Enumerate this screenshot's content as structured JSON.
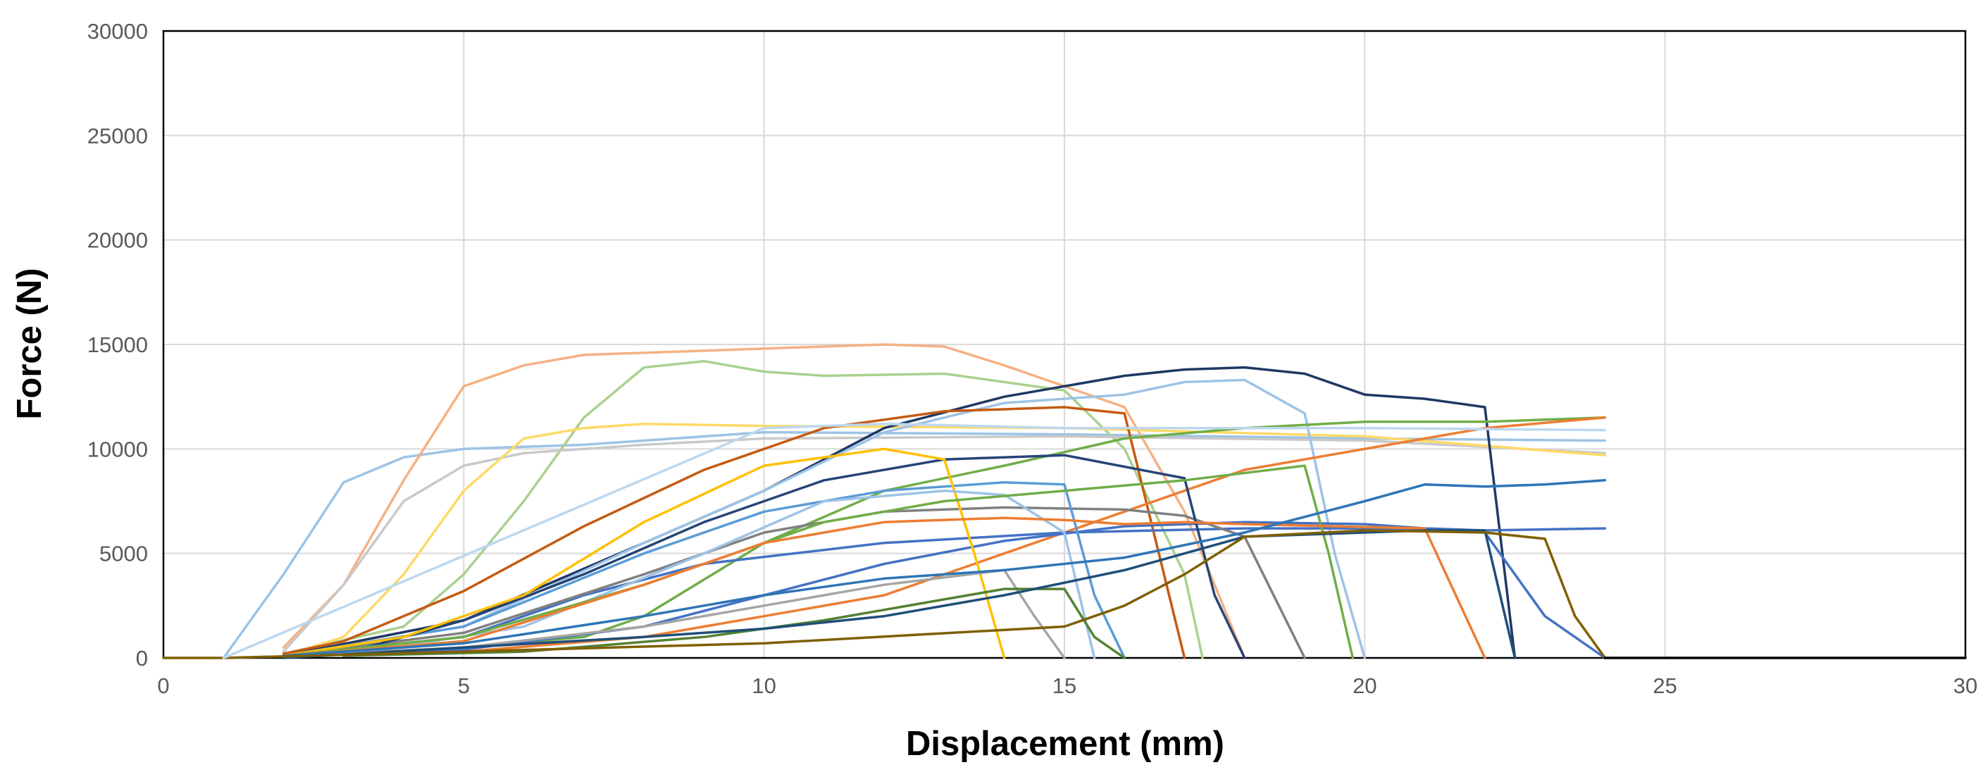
{
  "chart_data": {
    "type": "line",
    "title": "",
    "xlabel": "Displacement (mm)",
    "ylabel": "Force (N)",
    "xlim": [
      0,
      30
    ],
    "ylim": [
      0,
      30000
    ],
    "x_ticks": [
      "0",
      "5",
      "10",
      "15",
      "20",
      "25",
      "30"
    ],
    "y_ticks": [
      "0",
      "5000",
      "10000",
      "15000",
      "20000",
      "25000",
      "30000"
    ],
    "grid": true,
    "legend": "none",
    "series": [
      {
        "color": "#9dc3e6",
        "points": [
          [
            1,
            0
          ],
          [
            2,
            4000
          ],
          [
            3,
            8400
          ],
          [
            4,
            9600
          ],
          [
            5,
            10000
          ],
          [
            7,
            10200
          ],
          [
            10,
            10800
          ],
          [
            15,
            10700
          ],
          [
            20,
            10500
          ],
          [
            24,
            10400
          ]
        ]
      },
      {
        "color": "#f4b183",
        "points": [
          [
            2,
            500
          ],
          [
            3,
            3500
          ],
          [
            4,
            8500
          ],
          [
            5,
            13000
          ],
          [
            6,
            14000
          ],
          [
            7,
            14500
          ],
          [
            10,
            14800
          ],
          [
            12,
            15000
          ],
          [
            13,
            14900
          ],
          [
            14,
            14000
          ],
          [
            15,
            13000
          ],
          [
            16,
            12000
          ],
          [
            17,
            7000
          ],
          [
            18,
            0
          ]
        ]
      },
      {
        "color": "#a9d18e",
        "points": [
          [
            2,
            200
          ],
          [
            4,
            1500
          ],
          [
            5,
            4000
          ],
          [
            6,
            7500
          ],
          [
            7,
            11500
          ],
          [
            8,
            13900
          ],
          [
            9,
            14200
          ],
          [
            10,
            13700
          ],
          [
            11,
            13500
          ],
          [
            13,
            13600
          ],
          [
            15,
            12800
          ],
          [
            16,
            10000
          ],
          [
            17,
            4000
          ],
          [
            17.3,
            0
          ]
        ]
      },
      {
        "color": "#c9c9c9",
        "points": [
          [
            2,
            300
          ],
          [
            3,
            3500
          ],
          [
            4,
            7500
          ],
          [
            5,
            9200
          ],
          [
            6,
            9800
          ],
          [
            8,
            10200
          ],
          [
            10,
            10500
          ],
          [
            15,
            10600
          ],
          [
            20,
            10400
          ],
          [
            24,
            9800
          ]
        ]
      },
      {
        "color": "#ffd966",
        "points": [
          [
            2,
            100
          ],
          [
            3,
            1000
          ],
          [
            4,
            4000
          ],
          [
            5,
            8000
          ],
          [
            6,
            10500
          ],
          [
            7,
            11000
          ],
          [
            8,
            11200
          ],
          [
            10,
            11100
          ],
          [
            15,
            11000
          ],
          [
            20,
            10600
          ],
          [
            24,
            9700
          ]
        ]
      },
      {
        "color": "#1f3864",
        "points": [
          [
            2,
            100
          ],
          [
            5,
            1800
          ],
          [
            8,
            5500
          ],
          [
            10,
            8000
          ],
          [
            12,
            11000
          ],
          [
            14,
            12500
          ],
          [
            15,
            13000
          ],
          [
            16,
            13500
          ],
          [
            17,
            13800
          ],
          [
            18,
            13900
          ],
          [
            19,
            13600
          ],
          [
            20,
            12600
          ],
          [
            21,
            12400
          ],
          [
            22,
            12000
          ],
          [
            22.5,
            0
          ]
        ]
      },
      {
        "color": "#9dc3e6",
        "points": [
          [
            2,
            100
          ],
          [
            5,
            1500
          ],
          [
            8,
            5500
          ],
          [
            10,
            8000
          ],
          [
            12,
            10800
          ],
          [
            14,
            12200
          ],
          [
            16,
            12600
          ],
          [
            17,
            13200
          ],
          [
            18,
            13300
          ],
          [
            19,
            11700
          ],
          [
            19.5,
            5000
          ],
          [
            20,
            0
          ]
        ]
      },
      {
        "color": "#c55a11",
        "points": [
          [
            2,
            200
          ],
          [
            3,
            800
          ],
          [
            5,
            3200
          ],
          [
            7,
            6300
          ],
          [
            9,
            9000
          ],
          [
            11,
            11000
          ],
          [
            13,
            11800
          ],
          [
            15,
            12000
          ],
          [
            16,
            11700
          ],
          [
            17,
            0
          ]
        ]
      },
      {
        "color": "#70ad47",
        "points": [
          [
            3,
            100
          ],
          [
            5,
            500
          ],
          [
            7,
            1000
          ],
          [
            8,
            2000
          ],
          [
            10,
            5500
          ],
          [
            12,
            8000
          ],
          [
            14,
            9200
          ],
          [
            16,
            10500
          ],
          [
            18,
            11000
          ],
          [
            20,
            11300
          ],
          [
            22,
            11300
          ],
          [
            24,
            11500
          ]
        ]
      },
      {
        "color": "#ed7d31",
        "points": [
          [
            3,
            100
          ],
          [
            5,
            300
          ],
          [
            8,
            1000
          ],
          [
            10,
            2000
          ],
          [
            12,
            3000
          ],
          [
            14,
            5000
          ],
          [
            16,
            7000
          ],
          [
            18,
            9000
          ],
          [
            20,
            10000
          ],
          [
            22,
            11000
          ],
          [
            24,
            11500
          ]
        ]
      },
      {
        "color": "#4472c4",
        "points": [
          [
            3,
            100
          ],
          [
            5,
            400
          ],
          [
            8,
            1500
          ],
          [
            10,
            3000
          ],
          [
            12,
            4500
          ],
          [
            14,
            5600
          ],
          [
            16,
            6300
          ],
          [
            18,
            6500
          ],
          [
            20,
            6400
          ],
          [
            21,
            6200
          ],
          [
            22,
            6100
          ],
          [
            24,
            6200
          ]
        ]
      },
      {
        "color": "#4472c4",
        "points": [
          [
            2,
            100
          ],
          [
            5,
            1000
          ],
          [
            7,
            3000
          ],
          [
            9,
            4500
          ],
          [
            12,
            5500
          ],
          [
            15,
            6000
          ],
          [
            18,
            6200
          ],
          [
            20,
            6200
          ],
          [
            22,
            6000
          ],
          [
            23,
            2000
          ],
          [
            24,
            0
          ]
        ]
      },
      {
        "color": "#808080",
        "points": [
          [
            2,
            100
          ],
          [
            5,
            1200
          ],
          [
            8,
            4000
          ],
          [
            10,
            6000
          ],
          [
            12,
            7000
          ],
          [
            14,
            7200
          ],
          [
            16,
            7100
          ],
          [
            17,
            6800
          ],
          [
            18,
            5800
          ],
          [
            19,
            0
          ]
        ]
      },
      {
        "color": "#5b9bd5",
        "points": [
          [
            2,
            100
          ],
          [
            5,
            1500
          ],
          [
            8,
            5000
          ],
          [
            10,
            7000
          ],
          [
            12,
            8000
          ],
          [
            14,
            8400
          ],
          [
            15,
            8300
          ],
          [
            15.5,
            3000
          ],
          [
            16,
            0
          ]
        ]
      },
      {
        "color": "#264478",
        "points": [
          [
            3,
            200
          ],
          [
            5,
            1800
          ],
          [
            7,
            4000
          ],
          [
            9,
            6500
          ],
          [
            11,
            8500
          ],
          [
            13,
            9500
          ],
          [
            15,
            9700
          ],
          [
            17,
            8600
          ],
          [
            17.5,
            3000
          ],
          [
            18,
            0
          ]
        ]
      },
      {
        "color": "#ffc000",
        "points": [
          [
            2,
            100
          ],
          [
            4,
            1000
          ],
          [
            6,
            3000
          ],
          [
            8,
            6500
          ],
          [
            10,
            9200
          ],
          [
            12,
            10000
          ],
          [
            13,
            9500
          ],
          [
            13.5,
            5000
          ],
          [
            14,
            0
          ]
        ]
      },
      {
        "color": "#9dc3e6",
        "points": [
          [
            3,
            100
          ],
          [
            6,
            1500
          ],
          [
            9,
            5000
          ],
          [
            11,
            7500
          ],
          [
            13,
            8000
          ],
          [
            14,
            7800
          ],
          [
            15,
            6000
          ],
          [
            15.5,
            0
          ]
        ]
      },
      {
        "color": "#70ad47",
        "points": [
          [
            2,
            100
          ],
          [
            5,
            1000
          ],
          [
            8,
            3500
          ],
          [
            11,
            6500
          ],
          [
            13,
            7500
          ],
          [
            15,
            8000
          ],
          [
            17,
            8500
          ],
          [
            19,
            9200
          ],
          [
            19.4,
            5000
          ],
          [
            19.8,
            0
          ]
        ]
      },
      {
        "color": "#a5a5a5",
        "points": [
          [
            2,
            100
          ],
          [
            5,
            500
          ],
          [
            8,
            1500
          ],
          [
            10,
            2500
          ],
          [
            12,
            3500
          ],
          [
            14,
            4200
          ],
          [
            14.5,
            2000
          ],
          [
            15,
            0
          ]
        ]
      },
      {
        "color": "#548235",
        "points": [
          [
            3,
            100
          ],
          [
            6,
            300
          ],
          [
            9,
            1000
          ],
          [
            11,
            1800
          ],
          [
            13,
            2800
          ],
          [
            14,
            3300
          ],
          [
            15,
            3300
          ],
          [
            15.5,
            1000
          ],
          [
            16,
            0
          ]
        ]
      },
      {
        "color": "#ed7d31",
        "points": [
          [
            2,
            100
          ],
          [
            5,
            800
          ],
          [
            8,
            3500
          ],
          [
            10,
            5500
          ],
          [
            12,
            6500
          ],
          [
            14,
            6700
          ],
          [
            15,
            6600
          ],
          [
            16,
            6400
          ],
          [
            17,
            6500
          ],
          [
            18,
            6400
          ],
          [
            21,
            6200
          ],
          [
            22,
            0
          ]
        ]
      },
      {
        "color": "#2e75b6",
        "points": [
          [
            2,
            100
          ],
          [
            5,
            700
          ],
          [
            8,
            2000
          ],
          [
            10,
            3000
          ],
          [
            12,
            3800
          ],
          [
            14,
            4200
          ],
          [
            16,
            4800
          ],
          [
            18,
            6000
          ],
          [
            20,
            7500
          ],
          [
            21,
            8300
          ],
          [
            22,
            8200
          ],
          [
            23,
            8300
          ],
          [
            24,
            8500
          ]
        ]
      },
      {
        "color": "#1f4e79",
        "points": [
          [
            2,
            0
          ],
          [
            8,
            1000
          ],
          [
            10,
            1400
          ],
          [
            12,
            2000
          ],
          [
            14,
            3000
          ],
          [
            16,
            4200
          ],
          [
            18,
            5800
          ],
          [
            20,
            6000
          ],
          [
            21,
            6100
          ],
          [
            22,
            6100
          ],
          [
            22.5,
            0
          ]
        ]
      },
      {
        "color": "#7f6000",
        "points": [
          [
            0,
            0
          ],
          [
            1,
            0
          ],
          [
            5,
            300
          ],
          [
            10,
            700
          ],
          [
            15,
            1500
          ],
          [
            16,
            2500
          ],
          [
            17,
            4000
          ],
          [
            18,
            5800
          ],
          [
            20,
            6100
          ],
          [
            22,
            6000
          ],
          [
            23,
            5700
          ],
          [
            23.5,
            2000
          ],
          [
            24,
            0
          ]
        ]
      },
      {
        "color": "#bdd7ee",
        "points": [
          [
            1,
            0
          ],
          [
            10,
            11000
          ],
          [
            12,
            11200
          ],
          [
            15,
            11000
          ],
          [
            20,
            11000
          ],
          [
            24,
            10900
          ]
        ]
      },
      {
        "color": "#000000",
        "points": [
          [
            24,
            0
          ],
          [
            30,
            0
          ]
        ]
      }
    ]
  }
}
